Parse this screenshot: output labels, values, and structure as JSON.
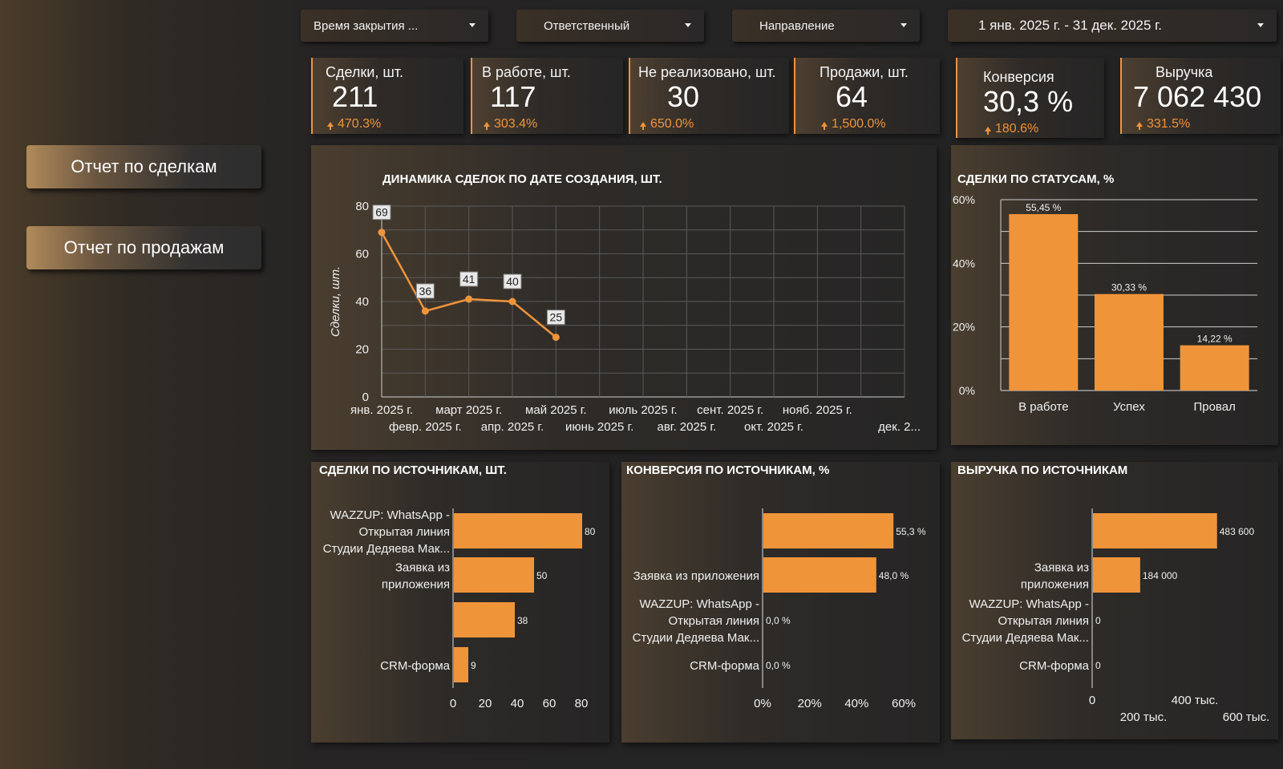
{
  "filters": [
    {
      "label": "Время закрытия ..."
    },
    {
      "label": "Ответственный"
    },
    {
      "label": "Направление"
    },
    {
      "label": "1 янв. 2025 г. - 31 дек. 2025 г."
    }
  ],
  "kpis": [
    {
      "label": "Сделки, шт.",
      "value": "211",
      "change": "470.3%"
    },
    {
      "label": "В работе, шт.",
      "value": "117",
      "change": "303.4%"
    },
    {
      "label": "Не реализовано, шт.",
      "value": "30",
      "change": "650.0%"
    },
    {
      "label": "Продажи, шт.",
      "value": "64",
      "change": "1,500.0%"
    },
    {
      "label": "Конверсия",
      "value": "30,3 %",
      "change": "180.6%"
    },
    {
      "label": "Выручка",
      "value": "7 062 430",
      "change": "331.5%"
    }
  ],
  "nav": {
    "deals_report": "Отчет по сделкам",
    "sales_report": "Отчет по продажам"
  },
  "colors": {
    "accent": "#f0943a",
    "grid": "#5a5a5a",
    "bg": "#232323"
  },
  "chart_data": [
    {
      "type": "line",
      "title": "ДИНАМИКА СДЕЛОК ПО ДАТЕ СОЗДАНИЯ, ШТ.",
      "ylabel": "Сделки, шт.",
      "x": [
        "янв. 2025 г.",
        "февр. 2025 г.",
        "март 2025 г.",
        "апр. 2025 г.",
        "май 2025 г.",
        "июнь 2025 г.",
        "июль 2025 г.",
        "авг. 2025 г.",
        "сент. 2025 г.",
        "окт. 2025 г.",
        "нояб. 2025 г.",
        "дек. 2..."
      ],
      "values": [
        69,
        36,
        41,
        40,
        25,
        null,
        null,
        null,
        null,
        null,
        null,
        null
      ],
      "yticks": [
        "0",
        "20",
        "40",
        "60",
        "80"
      ],
      "ylim": [
        0,
        80
      ],
      "grid": true
    },
    {
      "type": "bar",
      "title": "СДЕЛКИ ПО СТАТУСАМ, %",
      "categories": [
        "В работе",
        "Успех",
        "Провал"
      ],
      "values": [
        55.45,
        30.33,
        14.22
      ],
      "data_labels": [
        "55,45 %",
        "30,33 %",
        "14,22 %"
      ],
      "yticks": [
        "0%",
        "20%",
        "40%",
        "60%"
      ],
      "ylim": [
        0,
        60
      ]
    },
    {
      "type": "bar",
      "orientation": "horizontal",
      "title": "СДЕЛКИ ПО ИСТОЧНИКАМ, ШТ.",
      "categories": [
        [
          "WAZZUP: WhatsApp -",
          "Открытая линия",
          "Студии Дедяева Мак..."
        ],
        [
          "Заявка из",
          "приложения"
        ],
        [],
        [
          "CRM-форма"
        ]
      ],
      "values": [
        80,
        50,
        38,
        9
      ],
      "data_labels": [
        "80",
        "50",
        "38",
        "9"
      ],
      "xticks": [
        "0",
        "20",
        "40",
        "60",
        "80"
      ],
      "xlim": [
        0,
        80
      ]
    },
    {
      "type": "bar",
      "orientation": "horizontal",
      "title": "КОНВЕРСИЯ ПО ИСТОЧНИКАМ, %",
      "categories": [
        [],
        [
          "Заявка из приложения"
        ],
        [
          "WAZZUP: WhatsApp -",
          "Открытая линия",
          "Студии Дедяева Мак..."
        ],
        [
          "CRM-форма"
        ]
      ],
      "values": [
        55.3,
        48.0,
        0,
        0
      ],
      "data_labels": [
        "55,3 %",
        "48,0 %",
        "0,0 %",
        "0,0 %"
      ],
      "xticks": [
        "0%",
        "20%",
        "40%",
        "60%"
      ],
      "xlim": [
        0,
        60
      ]
    },
    {
      "type": "bar",
      "orientation": "horizontal",
      "title": "ВЫРУЧКА ПО ИСТОЧНИКАМ",
      "categories": [
        [],
        [
          "Заявка из",
          "приложения"
        ],
        [
          "WAZZUP: WhatsApp -",
          "Открытая линия",
          "Студии Дедяева Мак..."
        ],
        [
          "CRM-форма"
        ]
      ],
      "values": [
        483600,
        184000,
        0,
        0
      ],
      "data_labels": [
        "483 600",
        "184 000",
        "0",
        "0"
      ],
      "xticks": [
        "0",
        "200 тыс.",
        "400 тыс.",
        "600 тыс."
      ],
      "xlim": [
        0,
        600000
      ]
    }
  ]
}
